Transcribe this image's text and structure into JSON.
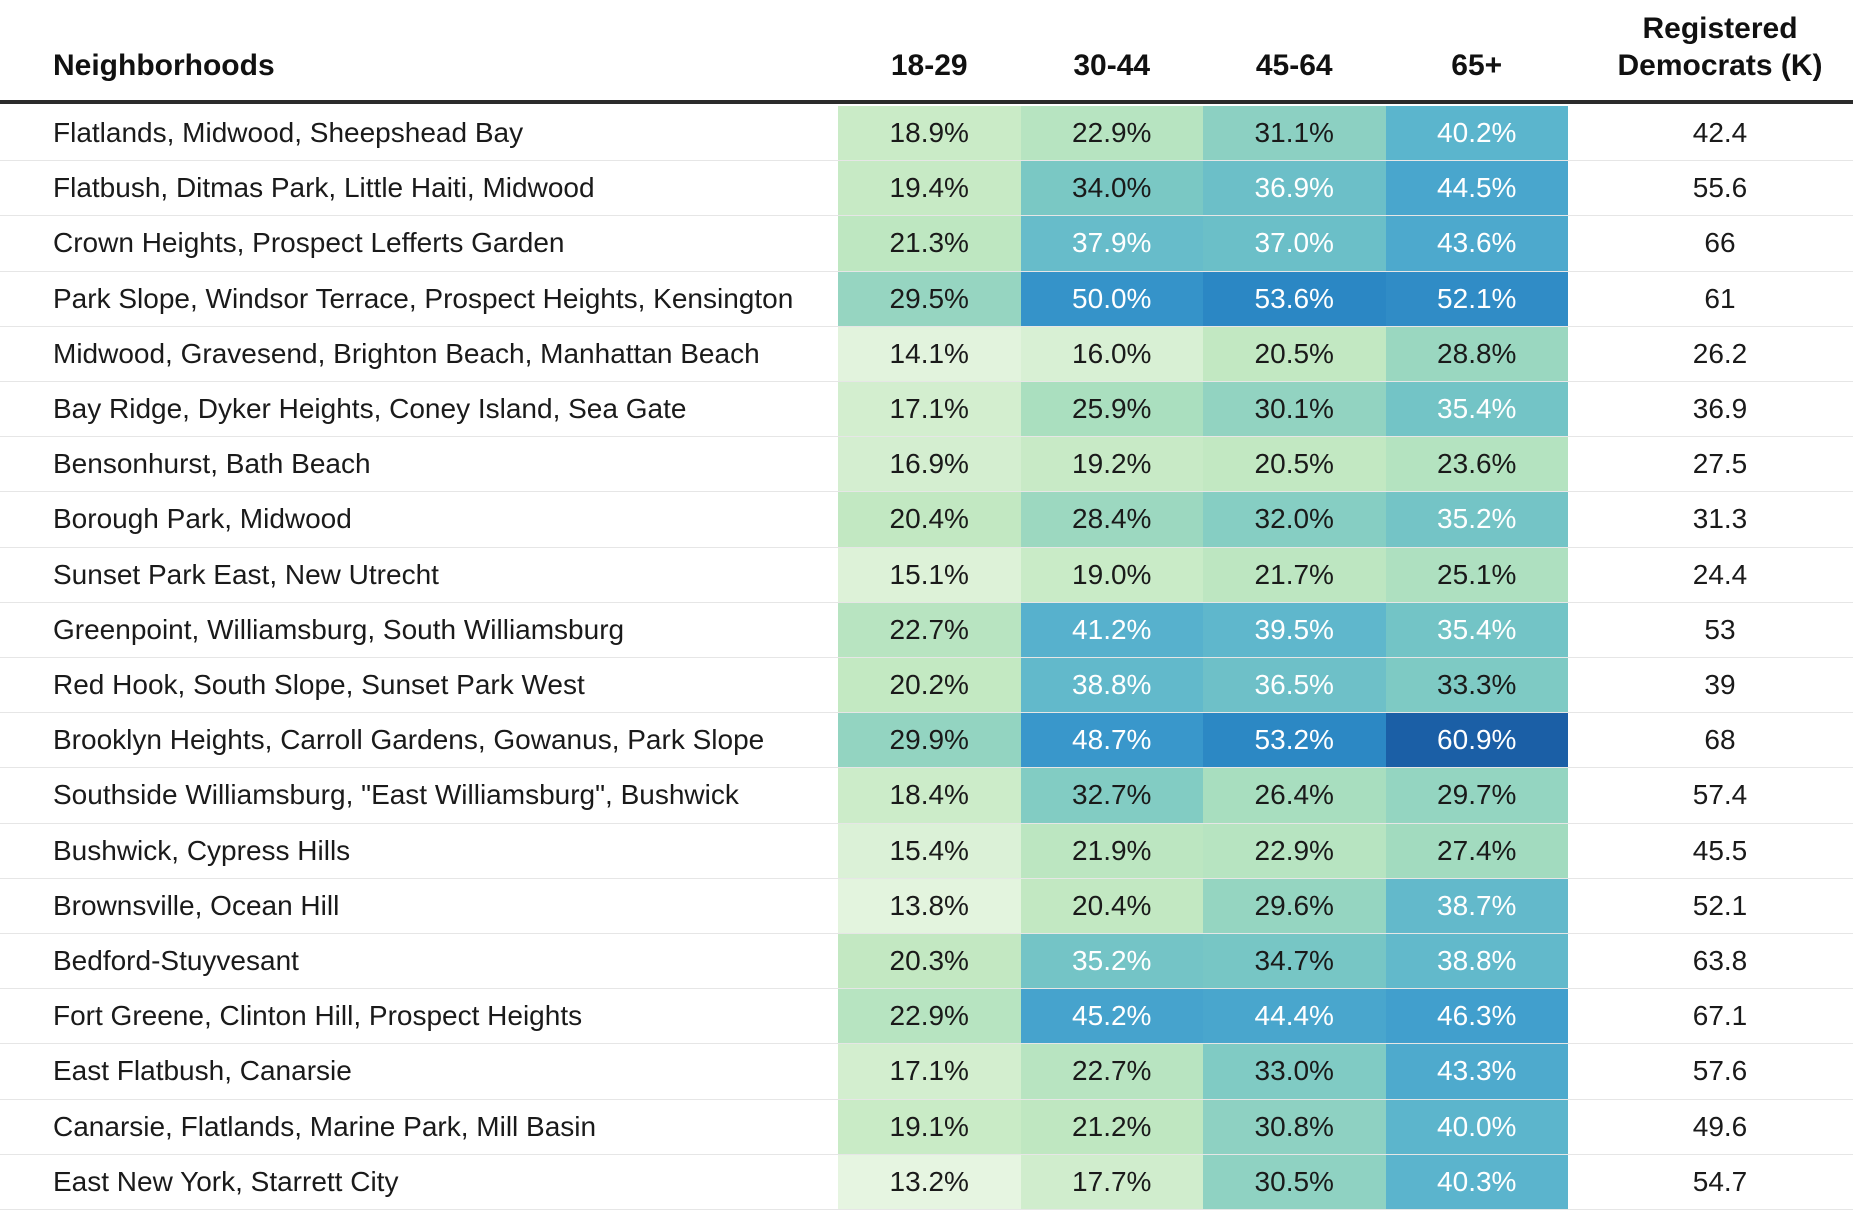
{
  "chart_data": {
    "type": "heatmap",
    "headers": {
      "name": "Neighborhoods",
      "columns": [
        "18-29",
        "30-44",
        "45-64",
        "65+"
      ],
      "registered_line1": "Registered",
      "registered_line2": "Democrats (K)"
    },
    "rows": [
      {
        "name": "Flatlands, Midwood, Sheepshead Bay",
        "values": [
          18.9,
          22.9,
          31.1,
          40.2
        ],
        "registered": "42.4"
      },
      {
        "name": "Flatbush, Ditmas Park, Little Haiti, Midwood",
        "values": [
          19.4,
          34.0,
          36.9,
          44.5
        ],
        "registered": "55.6"
      },
      {
        "name": "Crown Heights, Prospect Lefferts Garden",
        "values": [
          21.3,
          37.9,
          37.0,
          43.6
        ],
        "registered": "66"
      },
      {
        "name": "Park Slope, Windsor Terrace, Prospect Heights, Kensington",
        "values": [
          29.5,
          50.0,
          53.6,
          52.1
        ],
        "registered": "61"
      },
      {
        "name": "Midwood, Gravesend, Brighton Beach, Manhattan Beach",
        "values": [
          14.1,
          16.0,
          20.5,
          28.8
        ],
        "registered": "26.2"
      },
      {
        "name": "Bay Ridge, Dyker Heights, Coney Island, Sea Gate",
        "values": [
          17.1,
          25.9,
          30.1,
          35.4
        ],
        "registered": "36.9"
      },
      {
        "name": "Bensonhurst, Bath Beach",
        "values": [
          16.9,
          19.2,
          20.5,
          23.6
        ],
        "registered": "27.5"
      },
      {
        "name": "Borough Park, Midwood",
        "values": [
          20.4,
          28.4,
          32.0,
          35.2
        ],
        "registered": "31.3"
      },
      {
        "name": "Sunset Park East, New Utrecht",
        "values": [
          15.1,
          19.0,
          21.7,
          25.1
        ],
        "registered": "24.4"
      },
      {
        "name": "Greenpoint, Williamsburg, South Williamsburg",
        "values": [
          22.7,
          41.2,
          39.5,
          35.4
        ],
        "registered": "53"
      },
      {
        "name": "Red Hook, South Slope, Sunset Park West",
        "values": [
          20.2,
          38.8,
          36.5,
          33.3
        ],
        "registered": "39"
      },
      {
        "name": "Brooklyn Heights, Carroll Gardens, Gowanus, Park Slope",
        "values": [
          29.9,
          48.7,
          53.2,
          60.9
        ],
        "registered": "68"
      },
      {
        "name": "Southside Williamsburg, \"East Williamsburg\", Bushwick",
        "values": [
          18.4,
          32.7,
          26.4,
          29.7
        ],
        "registered": "57.4"
      },
      {
        "name": "Bushwick, Cypress Hills",
        "values": [
          15.4,
          21.9,
          22.9,
          27.4
        ],
        "registered": "45.5"
      },
      {
        "name": "Brownsville, Ocean Hill",
        "values": [
          13.8,
          20.4,
          29.6,
          38.7
        ],
        "registered": "52.1"
      },
      {
        "name": "Bedford-Stuyvesant",
        "values": [
          20.3,
          35.2,
          34.7,
          38.8
        ],
        "registered": "63.8"
      },
      {
        "name": "Fort Greene, Clinton Hill, Prospect Heights",
        "values": [
          22.9,
          45.2,
          44.4,
          46.3
        ],
        "registered": "67.1"
      },
      {
        "name": "East Flatbush, Canarsie",
        "values": [
          17.1,
          22.7,
          33.0,
          43.3
        ],
        "registered": "57.6"
      },
      {
        "name": "Canarsie, Flatlands, Marine Park, Mill Basin",
        "values": [
          19.1,
          21.2,
          30.8,
          40.0
        ],
        "registered": "49.6"
      },
      {
        "name": "East New York, Starrett City",
        "values": [
          13.2,
          17.7,
          30.5,
          40.3
        ],
        "registered": "54.7"
      }
    ],
    "value_format": "percent, one decimal",
    "color_scale": {
      "min_value": 13.2,
      "max_value": 60.9,
      "stops": [
        "#e6f5e1",
        "#c4e9c2",
        "#a6ddbf",
        "#7cc9c4",
        "#5ab4cd",
        "#3d9ccd",
        "#2a85c3",
        "#1b5fa6"
      ],
      "dark_text_threshold": 34.9,
      "dark_text_color": "#1a1a1a",
      "light_text_color": "#ffffff"
    }
  }
}
